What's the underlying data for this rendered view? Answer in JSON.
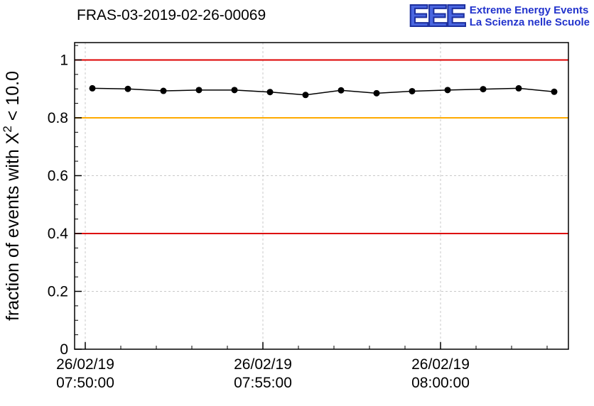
{
  "header": {
    "title": "FRAS-03-2019-02-26-00069",
    "logo": {
      "text": "EEE",
      "line1": "Extreme Energy Events",
      "line2": "La Scienza nelle Scuole",
      "color": "#2233cc"
    }
  },
  "chart_data": {
    "type": "line",
    "title": "FRAS-03-2019-02-26-00069",
    "ylabel_prefix": "fraction of events with X",
    "ylabel_sup": "2",
    "ylabel_suffix": " < 10.0",
    "ylim": [
      0,
      1.06
    ],
    "yticks": [
      {
        "value": 0,
        "label": "0"
      },
      {
        "value": 0.2,
        "label": "0.2"
      },
      {
        "value": 0.4,
        "label": "0.4"
      },
      {
        "value": 0.6,
        "label": "0.6"
      },
      {
        "value": 0.8,
        "label": "0.8"
      },
      {
        "value": 1,
        "label": "1"
      }
    ],
    "xlim_minutes": [
      -0.3,
      13.6
    ],
    "xticks": [
      {
        "minutes": 0,
        "line1": "26/02/19",
        "line2": "07:50:00"
      },
      {
        "minutes": 5,
        "line1": "26/02/19",
        "line2": "07:55:00"
      },
      {
        "minutes": 10,
        "line1": "26/02/19",
        "line2": "08:00:00"
      }
    ],
    "grid": true,
    "grid_color": "#c8c8c8",
    "frame_color": "#000000",
    "reference_lines": [
      {
        "y": 1.0,
        "color": "#dd0000",
        "width": 2
      },
      {
        "y": 0.8,
        "color": "#ffaa00",
        "width": 2
      },
      {
        "y": 0.4,
        "color": "#dd0000",
        "width": 2
      }
    ],
    "series": [
      {
        "name": "fraction of events with chi2 < 10",
        "color": "#000000",
        "marker": "circle",
        "x_minutes": [
          0.2,
          1.2,
          2.2,
          3.2,
          4.2,
          5.2,
          6.2,
          7.2,
          8.2,
          9.2,
          10.2,
          11.2,
          12.2,
          13.2
        ],
        "values": [
          0.902,
          0.9,
          0.893,
          0.896,
          0.896,
          0.889,
          0.879,
          0.895,
          0.885,
          0.892,
          0.896,
          0.899,
          0.902,
          0.89
        ]
      }
    ]
  }
}
